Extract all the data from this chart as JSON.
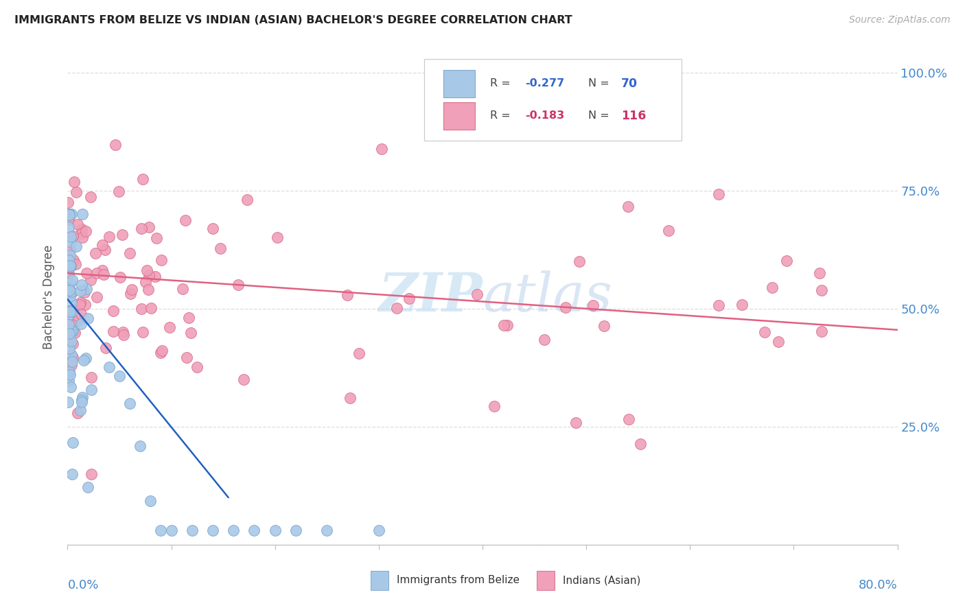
{
  "title": "IMMIGRANTS FROM BELIZE VS INDIAN (ASIAN) BACHELOR'S DEGREE CORRELATION CHART",
  "source": "Source: ZipAtlas.com",
  "ylabel": "Bachelor's Degree",
  "belize_color": "#a8c8e8",
  "belize_edge": "#80a8cc",
  "indian_color": "#f0a0b8",
  "indian_edge": "#d87090",
  "belize_line_color": "#2060c0",
  "indian_line_color": "#e06080",
  "watermark_zip": "ZIP",
  "watermark_atlas": "atlas",
  "xmin": 0.0,
  "xmax": 0.8,
  "ymin": 0.0,
  "ymax": 1.05,
  "legend_r1": "-0.277",
  "legend_n1": "70",
  "legend_r2": "-0.183",
  "legend_n2": "116",
  "grid_color": "#dddddd",
  "title_color": "#222222",
  "axis_label_color": "#4488cc",
  "ylabel_color": "#555555"
}
